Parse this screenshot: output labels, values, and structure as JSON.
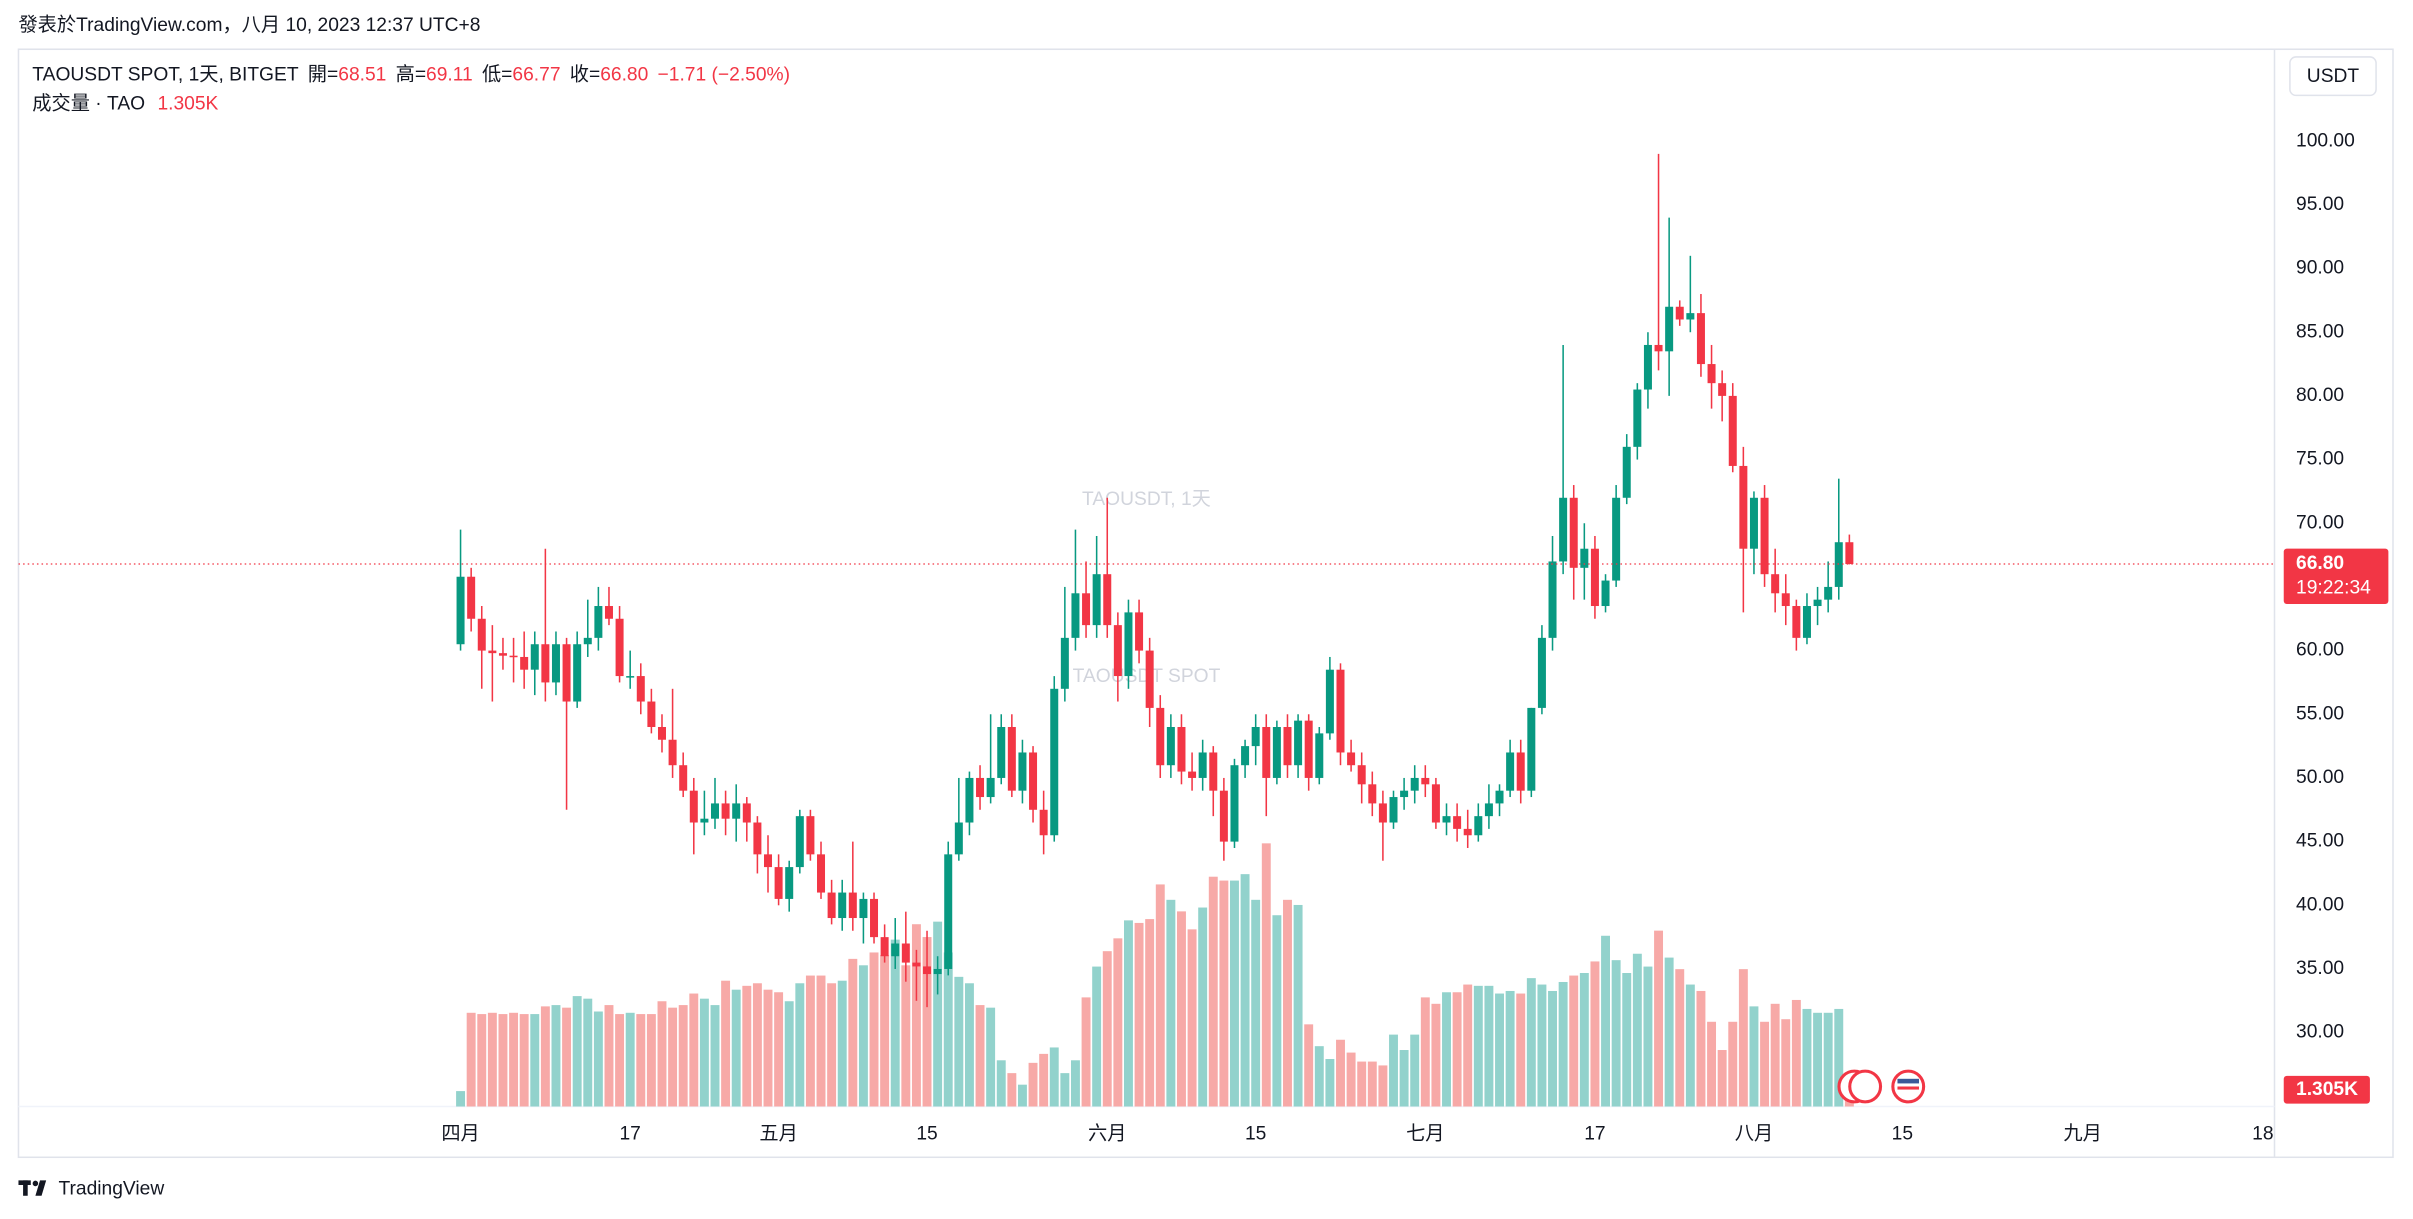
{
  "published": "發表於TradingView.com，八月 10, 2023 12:37 UTC+8",
  "brand": "TradingView",
  "chart_data": {
    "type": "candlestick",
    "legend": {
      "symbol": "TAOUSDT SPOT, 1天, BITGET",
      "fields": [
        {
          "key": "開=",
          "value": "68.51"
        },
        {
          "key": "高=",
          "value": "69.11"
        },
        {
          "key": "低=",
          "value": "66.77"
        },
        {
          "key": "收=",
          "value": "66.80"
        }
      ],
      "change": "−1.71 (−2.50%)",
      "volume_name": "成交量 · TAO",
      "volume_value": "1.305K"
    },
    "watermark": [
      "TAOUSDT, 1天",
      "TAOUSDT SPOT"
    ],
    "currency": "USDT",
    "countdown": "19:22:34",
    "up_color": "#089981",
    "down_color": "#f23645",
    "volume_up_color": "#92d2cc",
    "volume_down_color": "#f7a9a7",
    "grid": false,
    "xlim": [
      -41.7,
      171.1
    ],
    "xticks": [
      {
        "value": 0,
        "label": "四月"
      },
      {
        "value": 16,
        "label": "17"
      },
      {
        "value": 30,
        "label": "五月"
      },
      {
        "value": 44,
        "label": "15"
      },
      {
        "value": 61,
        "label": "六月"
      },
      {
        "value": 75,
        "label": "15"
      },
      {
        "value": 91,
        "label": "七月"
      },
      {
        "value": 107,
        "label": "17"
      },
      {
        "value": 122,
        "label": "八月"
      },
      {
        "value": 136,
        "label": "15"
      },
      {
        "value": 153,
        "label": "九月"
      },
      {
        "value": 170,
        "label": "18"
      }
    ],
    "ylim": [
      24.2,
      107.1
    ],
    "yticks": [
      {
        "value": 30,
        "label": "30.00"
      },
      {
        "value": 35,
        "label": "35.00"
      },
      {
        "value": 40,
        "label": "40.00"
      },
      {
        "value": 45,
        "label": "45.00"
      },
      {
        "value": 50,
        "label": "50.00"
      },
      {
        "value": 55,
        "label": "55.00"
      },
      {
        "value": 60,
        "label": "60.00"
      },
      {
        "value": 65,
        "label": "65.00"
      },
      {
        "value": 70,
        "label": "70.00"
      },
      {
        "value": 75,
        "label": "75.00"
      },
      {
        "value": 80,
        "label": "80.00"
      },
      {
        "value": 85,
        "label": "85.00"
      },
      {
        "value": 90,
        "label": "90.00"
      },
      {
        "value": 95,
        "label": "95.00"
      },
      {
        "value": 100,
        "label": "100.00"
      }
    ],
    "ohlc": [
      [
        60.5,
        69.5,
        60,
        65.8
      ],
      [
        65.8,
        66.5,
        61.5,
        62.5
      ],
      [
        62.5,
        63.5,
        57,
        60
      ],
      [
        60,
        62,
        56,
        59.8
      ],
      [
        59.8,
        61,
        58.5,
        59.6
      ],
      [
        59.6,
        61,
        57.5,
        59.5
      ],
      [
        59.5,
        61.5,
        57,
        58.5
      ],
      [
        58.5,
        61.5,
        56.5,
        60.5
      ],
      [
        60.5,
        68,
        56,
        57.5
      ],
      [
        57.5,
        61.5,
        56.5,
        60.5
      ],
      [
        60.5,
        61,
        47.5,
        56
      ],
      [
        56,
        61.5,
        55.5,
        60.5
      ],
      [
        60.5,
        64,
        59.5,
        61
      ],
      [
        61,
        65,
        60,
        63.5
      ],
      [
        63.5,
        65,
        62,
        62.5
      ],
      [
        62.5,
        63.5,
        57.5,
        58
      ],
      [
        58,
        60,
        57,
        58
      ],
      [
        58,
        59,
        55,
        56
      ],
      [
        56,
        57,
        53.5,
        54
      ],
      [
        54,
        55,
        52,
        53
      ],
      [
        53,
        57,
        50,
        51
      ],
      [
        51,
        52,
        48.5,
        49
      ],
      [
        49,
        50,
        44,
        46.5
      ],
      [
        46.5,
        49,
        45.5,
        46.8
      ],
      [
        46.8,
        50,
        46,
        48
      ],
      [
        48,
        49,
        45.5,
        46.8
      ],
      [
        46.8,
        49.5,
        45,
        48
      ],
      [
        48,
        48.5,
        45,
        46.5
      ],
      [
        46.5,
        47,
        42.5,
        44
      ],
      [
        44,
        45.5,
        41,
        43
      ],
      [
        43,
        44,
        40,
        40.5
      ],
      [
        40.5,
        43.5,
        39.5,
        43
      ],
      [
        43,
        47.5,
        42.5,
        47
      ],
      [
        47,
        47.5,
        43.5,
        44
      ],
      [
        44,
        45,
        40.5,
        41
      ],
      [
        41,
        42,
        38.5,
        39
      ],
      [
        39,
        42,
        38,
        41
      ],
      [
        41,
        45,
        38,
        39
      ],
      [
        39,
        41,
        37,
        40.5
      ],
      [
        40.5,
        41,
        37,
        37.5
      ],
      [
        37.5,
        38.5,
        35.5,
        36
      ],
      [
        36,
        39,
        35,
        37
      ],
      [
        37,
        39.5,
        34,
        35.5
      ],
      [
        35.5,
        36.5,
        32.5,
        35.2
      ],
      [
        35.2,
        38,
        32,
        34.6
      ],
      [
        34.6,
        36,
        33,
        35
      ],
      [
        35,
        45,
        34.5,
        44
      ],
      [
        44,
        50,
        43.5,
        46.5
      ],
      [
        46.5,
        50.5,
        45.5,
        50
      ],
      [
        50,
        51,
        47.5,
        48.5
      ],
      [
        48.5,
        55,
        48,
        50
      ],
      [
        50,
        55,
        49.5,
        54
      ],
      [
        54,
        55,
        48.5,
        49
      ],
      [
        49,
        53,
        48,
        52
      ],
      [
        52,
        52.5,
        46.5,
        47.5
      ],
      [
        47.5,
        49,
        44,
        45.5
      ],
      [
        45.5,
        58,
        45,
        57
      ],
      [
        57,
        65,
        56,
        61
      ],
      [
        61,
        69.5,
        60,
        64.5
      ],
      [
        64.5,
        67,
        61,
        62
      ],
      [
        62,
        69,
        61,
        66
      ],
      [
        66,
        72,
        61,
        62
      ],
      [
        62,
        63,
        56,
        58
      ],
      [
        58,
        64,
        57,
        63
      ],
      [
        63,
        64,
        59,
        60
      ],
      [
        60,
        61,
        54,
        55.5
      ],
      [
        55.5,
        56.5,
        50,
        51
      ],
      [
        51,
        55,
        50,
        54
      ],
      [
        54,
        55,
        49.5,
        50.5
      ],
      [
        50.5,
        52,
        49,
        50
      ],
      [
        50,
        53,
        49,
        52
      ],
      [
        52,
        52.5,
        47,
        49
      ],
      [
        49,
        50,
        43.5,
        45
      ],
      [
        45,
        51.5,
        44.5,
        51
      ],
      [
        51,
        53,
        50,
        52.5
      ],
      [
        52.5,
        55,
        51,
        54
      ],
      [
        54,
        55,
        47,
        50
      ],
      [
        50,
        54.5,
        49.5,
        54
      ],
      [
        54,
        55,
        50,
        51
      ],
      [
        51,
        55,
        50,
        54.5
      ],
      [
        54.5,
        55,
        49,
        50
      ],
      [
        50,
        54,
        49.5,
        53.5
      ],
      [
        53.5,
        59.5,
        53,
        58.5
      ],
      [
        58.5,
        59,
        51,
        52
      ],
      [
        52,
        53,
        50.5,
        51
      ],
      [
        51,
        52,
        48,
        49.5
      ],
      [
        49.5,
        50.5,
        47,
        48
      ],
      [
        48,
        49,
        43.5,
        46.5
      ],
      [
        46.5,
        49,
        46,
        48.5
      ],
      [
        48.5,
        50,
        47.5,
        49
      ],
      [
        49,
        51,
        48,
        50
      ],
      [
        50,
        51,
        48.5,
        49.5
      ],
      [
        49.5,
        50,
        46,
        46.5
      ],
      [
        46.5,
        48,
        45.5,
        47
      ],
      [
        47,
        48,
        45,
        46
      ],
      [
        46,
        47.5,
        44.5,
        45.5
      ],
      [
        45.5,
        48,
        45,
        47
      ],
      [
        47,
        49.5,
        46,
        48
      ],
      [
        48,
        49.5,
        47,
        49
      ],
      [
        49,
        53,
        48.5,
        52
      ],
      [
        52,
        53,
        48,
        49
      ],
      [
        49,
        55.5,
        48.5,
        55.5
      ],
      [
        55.5,
        62,
        55,
        61
      ],
      [
        61,
        69,
        60,
        67
      ],
      [
        67,
        84,
        66,
        72
      ],
      [
        72,
        73,
        64,
        66.5
      ],
      [
        66.5,
        70,
        64,
        68
      ],
      [
        68,
        69,
        62.5,
        63.5
      ],
      [
        63.5,
        66,
        63,
        65.5
      ],
      [
        65.5,
        73,
        65,
        72
      ],
      [
        72,
        77,
        71.5,
        76
      ],
      [
        76,
        81,
        75,
        80.5
      ],
      [
        80.5,
        85,
        79,
        84
      ],
      [
        84,
        99,
        82,
        83.5
      ],
      [
        83.5,
        94,
        80,
        87
      ],
      [
        87,
        87.5,
        85.5,
        86
      ],
      [
        86,
        91,
        85,
        86.5
      ],
      [
        86.5,
        88,
        81.5,
        82.5
      ],
      [
        82.5,
        84,
        79,
        81
      ],
      [
        81,
        82,
        78,
        80
      ],
      [
        80,
        81,
        74,
        74.5
      ],
      [
        74.5,
        76,
        63,
        68
      ],
      [
        68,
        72.5,
        66,
        72
      ],
      [
        72,
        73,
        65,
        66
      ],
      [
        66,
        68,
        63,
        64.5
      ],
      [
        64.5,
        66,
        62,
        63.5
      ],
      [
        63.5,
        64,
        60,
        61
      ],
      [
        61,
        64.5,
        60.5,
        63.5
      ],
      [
        63.5,
        65,
        62,
        64
      ],
      [
        64,
        67,
        63,
        65
      ],
      [
        65,
        73.5,
        64,
        68.51
      ],
      [
        68.51,
        69.11,
        66.77,
        66.8
      ]
    ],
    "volume": [
      1.2,
      7.3,
      7.2,
      7.3,
      7.2,
      7.3,
      7.2,
      7.2,
      7.8,
      7.9,
      7.7,
      8.6,
      8.4,
      7.4,
      7.9,
      7.2,
      7.3,
      7.2,
      7.2,
      8.2,
      7.7,
      7.9,
      8.8,
      8.4,
      7.9,
      9.8,
      9.1,
      9.4,
      9.6,
      9.1,
      8.9,
      8.2,
      9.6,
      10.2,
      10.2,
      9.6,
      9.8,
      11.5,
      11.0,
      12.0,
      11.8,
      13.0,
      11.0,
      14.2,
      13.2,
      14.4,
      12.0,
      10.1,
      9.6,
      7.9,
      7.7,
      3.6,
      2.6,
      1.7,
      3.4,
      4.1,
      4.6,
      2.6,
      3.6,
      8.5,
      10.9,
      12.1,
      13.1,
      14.5,
      14.3,
      14.6,
      17.3,
      16.1,
      15.2,
      13.8,
      15.5,
      17.9,
      17.6,
      17.6,
      18.1,
      16.1,
      20.5,
      14.9,
      16.1,
      15.7,
      6.4,
      4.7,
      3.7,
      5.2,
      4.2,
      3.5,
      3.5,
      3.2,
      5.6,
      4.4,
      5.6,
      8.5,
      8.0,
      8.9,
      8.9,
      9.5,
      9.4,
      9.4,
      8.8,
      9.0,
      8.8,
      10.0,
      9.5,
      9.0,
      9.7,
      10.2,
      10.4,
      11.3,
      13.3,
      11.4,
      10.4,
      11.9,
      10.9,
      13.7,
      11.6,
      10.7,
      9.5,
      9.0,
      6.6,
      4.4,
      6.6,
      10.7,
      7.8,
      6.6,
      8.0,
      6.8,
      8.3,
      7.6,
      7.3,
      7.3,
      7.6,
      1.305
    ]
  }
}
